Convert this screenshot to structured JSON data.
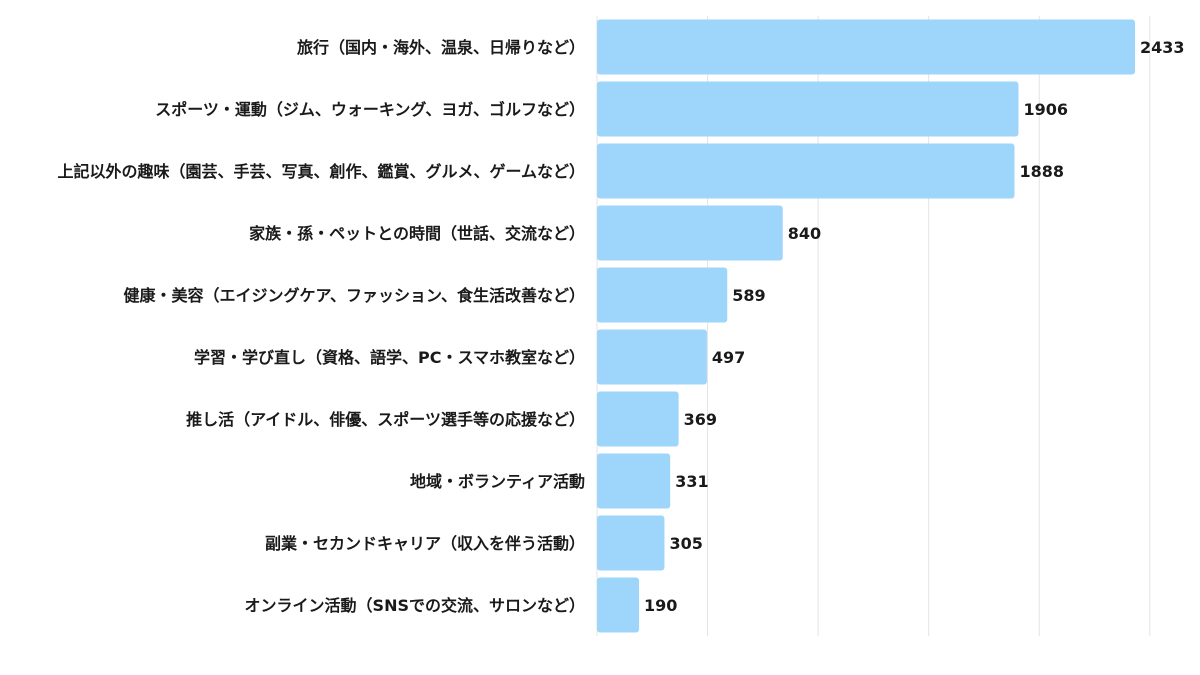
{
  "chart_data": {
    "type": "bar",
    "orientation": "horizontal",
    "categories": [
      "旅行（国内・海外、温泉、日帰りなど）",
      "スポーツ・運動（ジム、ウォーキング、ヨガ、ゴルフなど）",
      "上記以外の趣味（園芸、手芸、写真、創作、鑑賞、グルメ、ゲームなど）",
      "家族・孫・ペットとの時間（世話、交流など）",
      "健康・美容（エイジングケア、ファッション、食生活改善など）",
      "学習・学び直し（資格、語学、PC・スマホ教室など）",
      "推し活（アイドル、俳優、スポーツ選手等の応援など）",
      "地域・ボランティア活動",
      "副業・セカンドキャリア（収入を伴う活動）",
      "オンライン活動（SNSでの交流、サロンなど）"
    ],
    "values": [
      2433,
      1906,
      1888,
      840,
      589,
      497,
      369,
      331,
      305,
      190
    ],
    "value_labels": [
      "2433",
      "1906",
      "1888",
      "840",
      "589",
      "497",
      "369",
      "331",
      "305",
      "190"
    ],
    "xlim": [
      0,
      2500
    ],
    "grid": true,
    "bar_color": "#9dd5fb",
    "grid_color": "#e3e3e3"
  }
}
